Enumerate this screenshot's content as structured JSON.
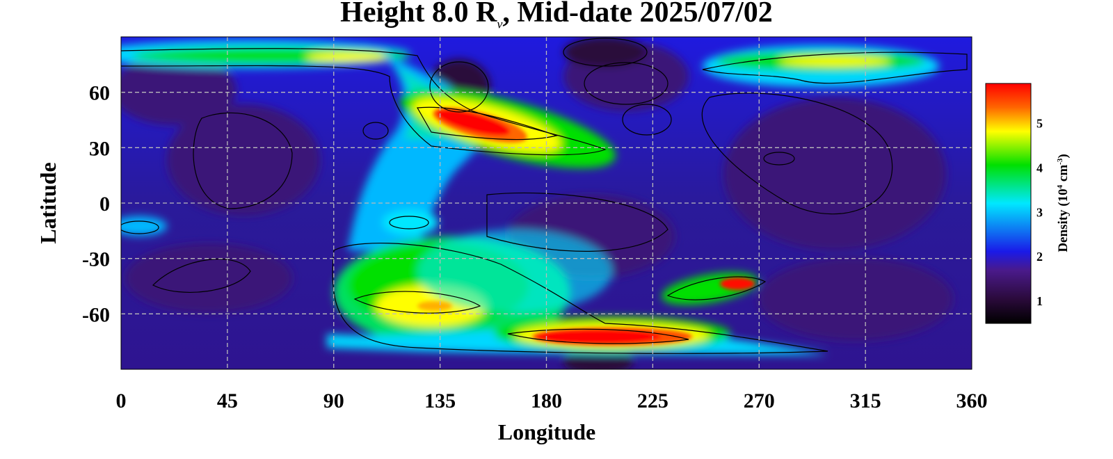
{
  "chart_data": {
    "type": "heatmap",
    "title_prefix": "Height 8.0 R",
    "title_subscript": "ν",
    "title_suffix": ", Mid-date 2025/07/02",
    "xlabel": "Longitude",
    "ylabel": "Latitude",
    "xlim": [
      0,
      360
    ],
    "ylim": [
      -90,
      90
    ],
    "x_ticks": [
      0,
      45,
      90,
      135,
      180,
      225,
      270,
      315,
      360
    ],
    "y_ticks": [
      60,
      30,
      0,
      -30,
      -60
    ],
    "grid": true,
    "colorbar": {
      "label_prefix": "Density (10",
      "label_exp": "4",
      "label_mid": " cm",
      "label_exp2": "-3",
      "label_suffix": ")",
      "ticks": [
        1,
        2,
        3,
        4,
        5
      ],
      "range": [
        0.5,
        5.9
      ],
      "colors": [
        "#000000",
        "#2a0a3a",
        "#4a1a8a",
        "#1a1ae8",
        "#00e8ff",
        "#00e000",
        "#ffff00",
        "#ff6600",
        "#ff0000"
      ]
    },
    "features": [
      {
        "region": "north-polar band",
        "lon": [
          0,
          130
        ],
        "lat": [
          70,
          85
        ],
        "density": 3.8
      },
      {
        "region": "north peak",
        "lon": [
          140,
          190
        ],
        "lat": [
          35,
          50
        ],
        "density": 5.8
      },
      {
        "region": "southern blob",
        "lon": [
          110,
          170
        ],
        "lat": [
          -70,
          -35
        ],
        "density": 4.5
      },
      {
        "region": "south peak",
        "lon": [
          185,
          240
        ],
        "lat": [
          -78,
          -68
        ],
        "density": 5.8
      },
      {
        "region": "small peak",
        "lon": [
          250,
          270
        ],
        "lat": [
          -52,
          -42
        ],
        "density": 5.5
      },
      {
        "region": "north-east band",
        "lon": [
          280,
          360
        ],
        "lat": [
          72,
          82
        ],
        "density": 4.2
      }
    ]
  }
}
